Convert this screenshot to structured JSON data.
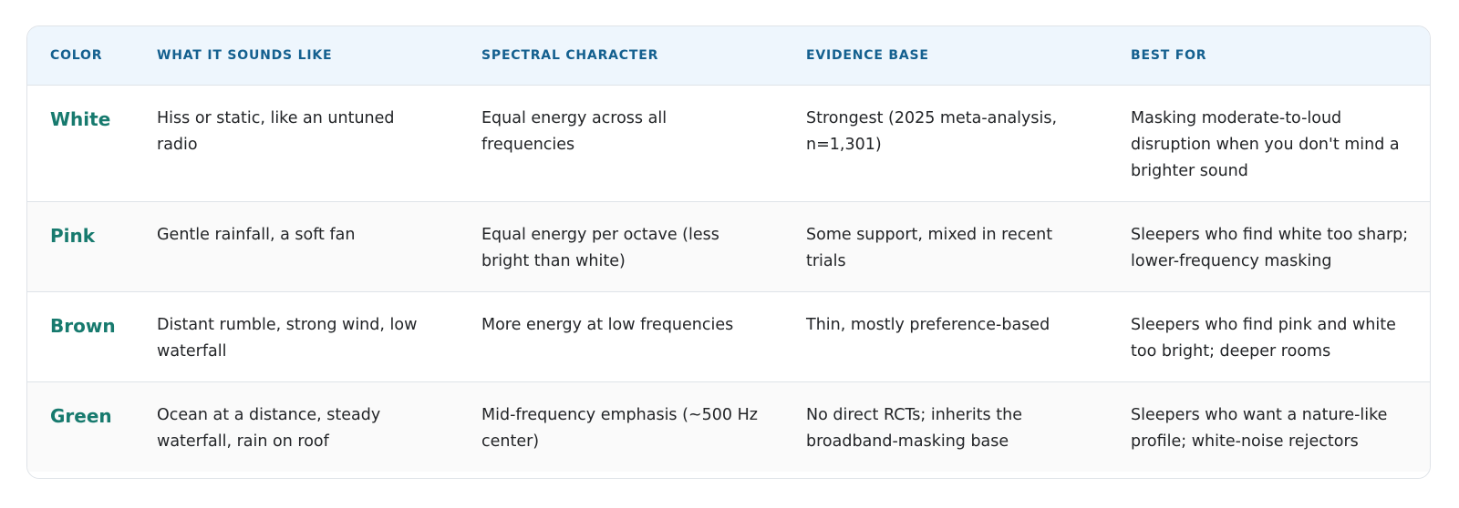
{
  "table": {
    "headers": [
      "COLOR",
      "WHAT IT SOUNDS LIKE",
      "SPECTRAL CHARACTER",
      "EVIDENCE BASE",
      "BEST FOR"
    ],
    "rows": [
      {
        "color": "White",
        "sounds_like": "Hiss or static, like an untuned radio",
        "spectral": "Equal energy across all frequencies",
        "evidence": "Strongest (2025 meta-analysis, n=1,301)",
        "best_for": "Masking moderate-to-loud disruption when you don't mind a brighter sound"
      },
      {
        "color": "Pink",
        "sounds_like": "Gentle rainfall, a soft fan",
        "spectral": "Equal energy per octave (less bright than white)",
        "evidence": "Some support, mixed in recent trials",
        "best_for": "Sleepers who find white too sharp; lower-frequency masking"
      },
      {
        "color": "Brown",
        "sounds_like": "Distant rumble, strong wind, low waterfall",
        "spectral": "More energy at low frequencies",
        "evidence": "Thin, mostly preference-based",
        "best_for": "Sleepers who find pink and white too bright; deeper rooms"
      },
      {
        "color": "Green",
        "sounds_like": "Ocean at a distance, steady waterfall, rain on roof",
        "spectral": "Mid-frequency emphasis (~500 Hz center)",
        "evidence": "No direct RCTs; inherits the broadband-masking base",
        "best_for": "Sleepers who want a nature-like profile; white-noise rejectors"
      }
    ]
  },
  "colors": {
    "header_bg": "#eef6fd",
    "header_text": "#14608f",
    "color_name_text": "#177a6e",
    "alt_row_bg": "#fafafa",
    "border": "#dfe3e8"
  }
}
